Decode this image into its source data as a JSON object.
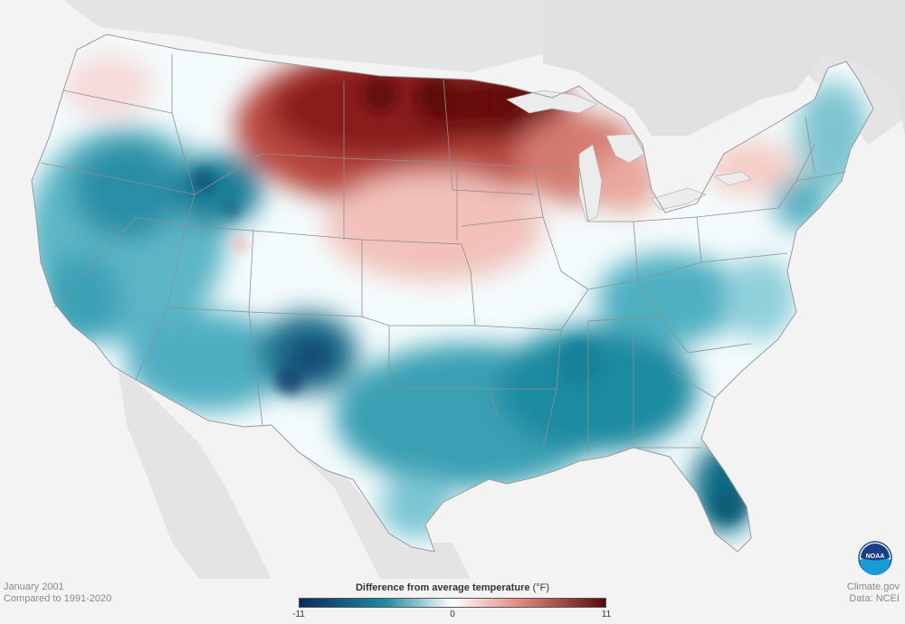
{
  "map": {
    "region": "contiguous United States",
    "layer": "temperature anomaly",
    "anomaly_areas": [
      {
        "name": "Northern Plains / Upper Midwest",
        "anomaly": "warm",
        "max_value": 11
      },
      {
        "name": "Northeast / New York",
        "anomaly": "slightly warm"
      },
      {
        "name": "Southwest / Texas / Southeast",
        "anomaly": "cold"
      },
      {
        "name": "Florida",
        "anomaly": "cold",
        "min_value": -9
      },
      {
        "name": "Pacific Coast / Great Basin",
        "anomaly": "cold"
      }
    ],
    "colors": {
      "background": "#f3f3f3",
      "land_outside": "#e4e4e4",
      "state_lines": "#8f8f8f",
      "cold_strong": "#0b2a5e",
      "cold": "#1f8aa0",
      "neutral": "#ffffff",
      "warm": "#e08a80",
      "warm_strong": "#5a0a0a"
    }
  },
  "caption": {
    "date": "January 2001",
    "baseline": "Compared to 1991-2020",
    "credit": "Climate.gov",
    "data_source": "Data: NCEI"
  },
  "legend": {
    "title": "Difference from average temperature",
    "unit": "(°F)",
    "ticks": [
      "-11",
      "0",
      "11"
    ],
    "min": -11,
    "max": 11
  },
  "logo": {
    "text": "NOAA",
    "icon": "noaa-logo-icon"
  }
}
